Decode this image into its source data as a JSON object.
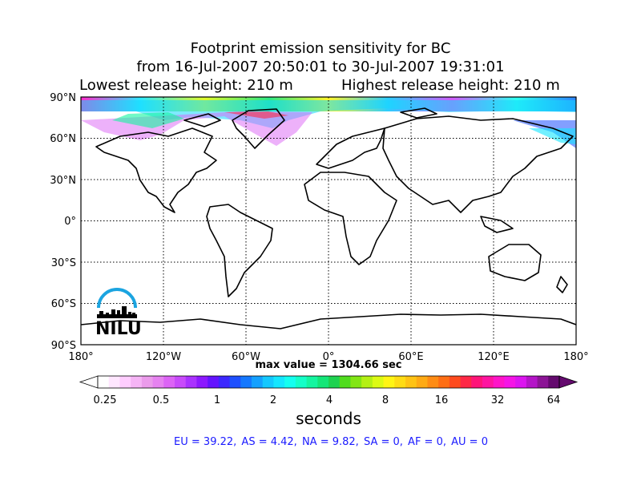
{
  "title": {
    "line1": "Footprint emission sensitivity for BC",
    "line2": "from 16-Jul-2007 20:50:01 to 30-Jul-2007 19:31:01",
    "release_low": "Lowest release height: 210 m",
    "release_high": "Highest release height: 210 m"
  },
  "map": {
    "lat_labels": [
      "90°N",
      "60°N",
      "30°N",
      "0°",
      "30°S",
      "60°S",
      "90°S"
    ],
    "lon_labels": [
      "180°",
      "120°W",
      "60°W",
      "0°",
      "60°E",
      "120°E",
      "180°"
    ],
    "grid": true,
    "projection": "cylindrical"
  },
  "logo": {
    "text": "NILU",
    "arc_color": "#1ba4e0"
  },
  "max_value": "max value = 1304.66 sec",
  "colorbar": {
    "tick_labels": [
      "0.25",
      "0.5",
      "1",
      "2",
      "4",
      "8",
      "16",
      "32",
      "64"
    ],
    "unit": "seconds",
    "colors": [
      "#ffffff",
      "#ffe6ff",
      "#ffcdff",
      "#f5b4f5",
      "#eb9beb",
      "#e682f0",
      "#dc64f5",
      "#c84bfa",
      "#aa32ff",
      "#8c19ff",
      "#6414ff",
      "#3c28ff",
      "#1e50ff",
      "#1478ff",
      "#14a0ff",
      "#14c8ff",
      "#14e6ff",
      "#14fff0",
      "#14ffc8",
      "#14f5a0",
      "#14e678",
      "#1ed250",
      "#50dc1e",
      "#82e614",
      "#b4f014",
      "#dcfa14",
      "#fff514",
      "#ffdc14",
      "#ffc314",
      "#ffaa14",
      "#ff8c14",
      "#ff6e14",
      "#ff4b1e",
      "#ff2846",
      "#ff1478",
      "#ff14a0",
      "#ff14c8",
      "#f514e6",
      "#dc14f0",
      "#b414c8",
      "#8c1496",
      "#640a6e"
    ]
  },
  "stats": [
    "EU = 39.22,",
    "AS = 4.42,",
    "NA = 9.82,",
    "SA = 0,",
    "AF = 0,",
    "AU = 0"
  ]
}
